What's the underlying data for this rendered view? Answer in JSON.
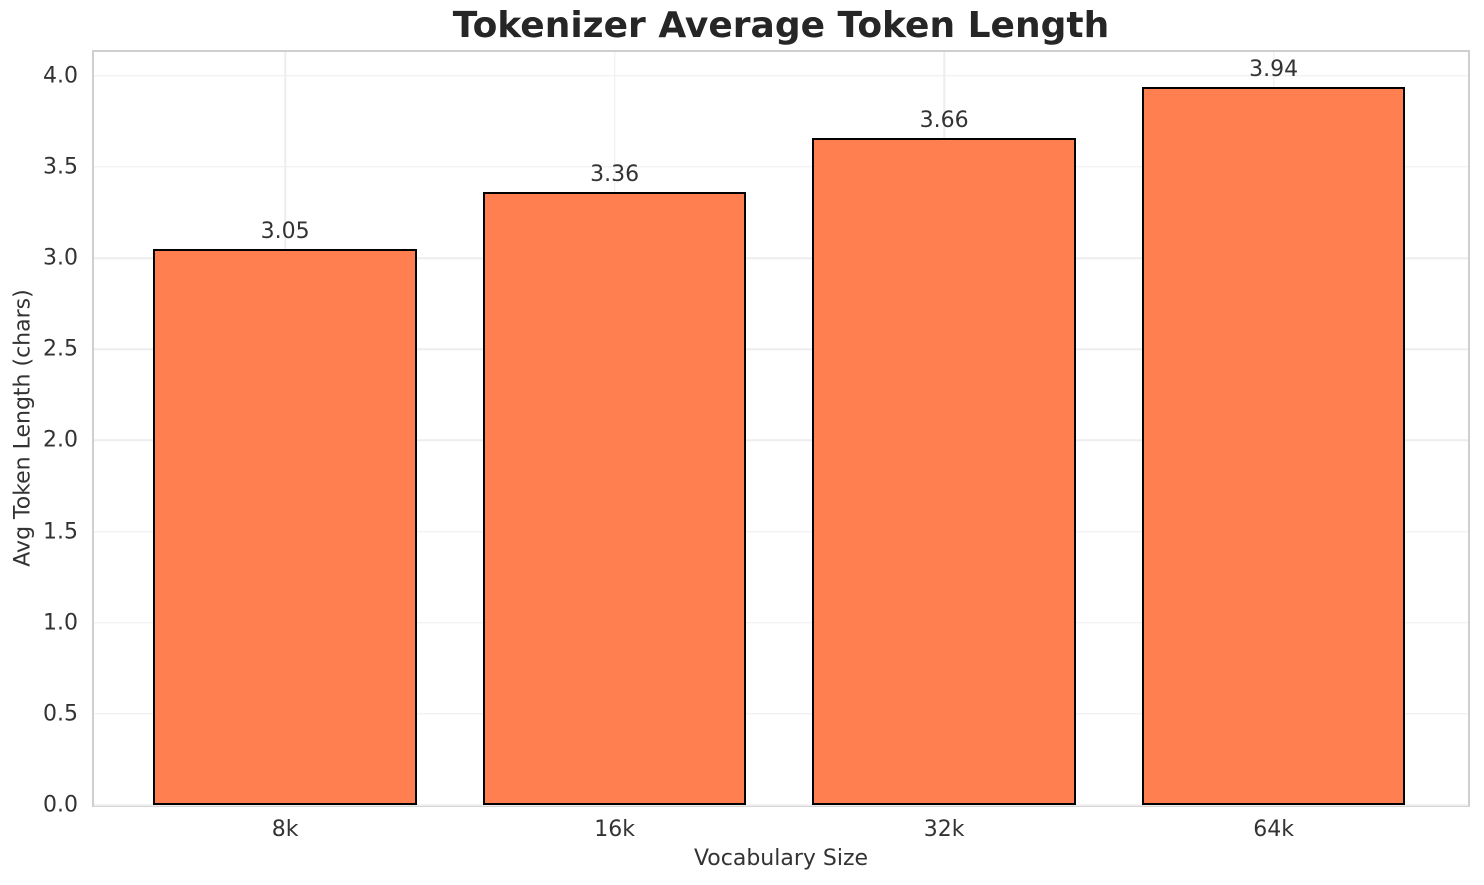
{
  "chart_data": {
    "type": "bar",
    "title": "Tokenizer Average Token Length",
    "xlabel": "Vocabulary Size",
    "ylabel": "Avg Token Length (chars)",
    "categories": [
      "8k",
      "16k",
      "32k",
      "64k"
    ],
    "values": [
      3.05,
      3.36,
      3.66,
      3.94
    ],
    "value_labels": [
      "3.05",
      "3.36",
      "3.66",
      "3.94"
    ],
    "yticks": [
      0.0,
      0.5,
      1.0,
      1.5,
      2.0,
      2.5,
      3.0,
      3.5,
      4.0
    ],
    "ytick_labels": [
      "0.0",
      "0.5",
      "1.0",
      "1.5",
      "2.0",
      "2.5",
      "3.0",
      "3.5",
      "4.0"
    ],
    "ylim": [
      0,
      4.13
    ],
    "xlim": [
      -0.58,
      3.59
    ],
    "bar_width": 0.8,
    "grid": true,
    "legend": null,
    "colors": {
      "bar_fill": "#FF7F50",
      "bar_edge": "#000000",
      "grid": "#EDEDED",
      "spine": "#CFCFCF",
      "title": "#262626",
      "text": "#333333",
      "background": "#FFFFFF"
    }
  }
}
